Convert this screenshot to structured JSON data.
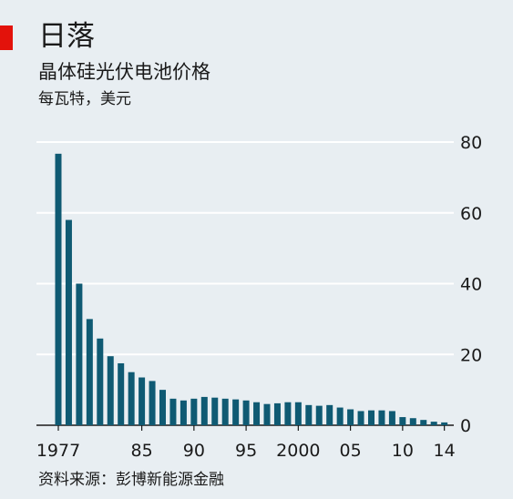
{
  "header": {
    "title": "日落",
    "subtitle": "晶体硅光伏电池价格",
    "unit": "每瓦特，美元"
  },
  "footer": {
    "source": "资料来源：彭博新能源金融"
  },
  "colors": {
    "accent": "#e3120b",
    "bar": "#0f5a73",
    "gridline": "#ffffff",
    "background": "#e8eef2",
    "baseline": "#1a1a1a"
  },
  "chart_data": {
    "type": "bar",
    "title": "日落",
    "subtitle": "晶体硅光伏电池价格",
    "ylabel": "每瓦特，美元",
    "ylim": [
      0,
      80
    ],
    "y_ticks": [
      "0",
      "20",
      "40",
      "60",
      "80"
    ],
    "y_axis_side": "right",
    "grid": true,
    "x_tick_labels": [
      {
        "year": 1977,
        "label": "1977"
      },
      {
        "year": 1985,
        "label": "85"
      },
      {
        "year": 1990,
        "label": "90"
      },
      {
        "year": 1995,
        "label": "95"
      },
      {
        "year": 2000,
        "label": "2000"
      },
      {
        "year": 2005,
        "label": "05"
      },
      {
        "year": 2010,
        "label": "10"
      },
      {
        "year": 2014,
        "label": "14"
      }
    ],
    "categories": [
      1977,
      1978,
      1979,
      1980,
      1981,
      1982,
      1983,
      1984,
      1985,
      1986,
      1987,
      1988,
      1989,
      1990,
      1991,
      1992,
      1993,
      1994,
      1995,
      1996,
      1997,
      1998,
      1999,
      2000,
      2001,
      2002,
      2003,
      2004,
      2005,
      2006,
      2007,
      2008,
      2009,
      2010,
      2011,
      2012,
      2013,
      2014
    ],
    "values": [
      76.7,
      58.0,
      40.0,
      30.0,
      24.5,
      19.5,
      17.5,
      15.0,
      13.5,
      12.5,
      10.0,
      7.5,
      7.0,
      7.5,
      8.0,
      7.8,
      7.5,
      7.3,
      7.0,
      6.5,
      6.0,
      6.2,
      6.5,
      6.5,
      5.7,
      5.5,
      5.7,
      5.0,
      4.5,
      4.0,
      4.2,
      4.2,
      4.0,
      2.3,
      2.0,
      1.5,
      1.0,
      0.8
    ]
  }
}
